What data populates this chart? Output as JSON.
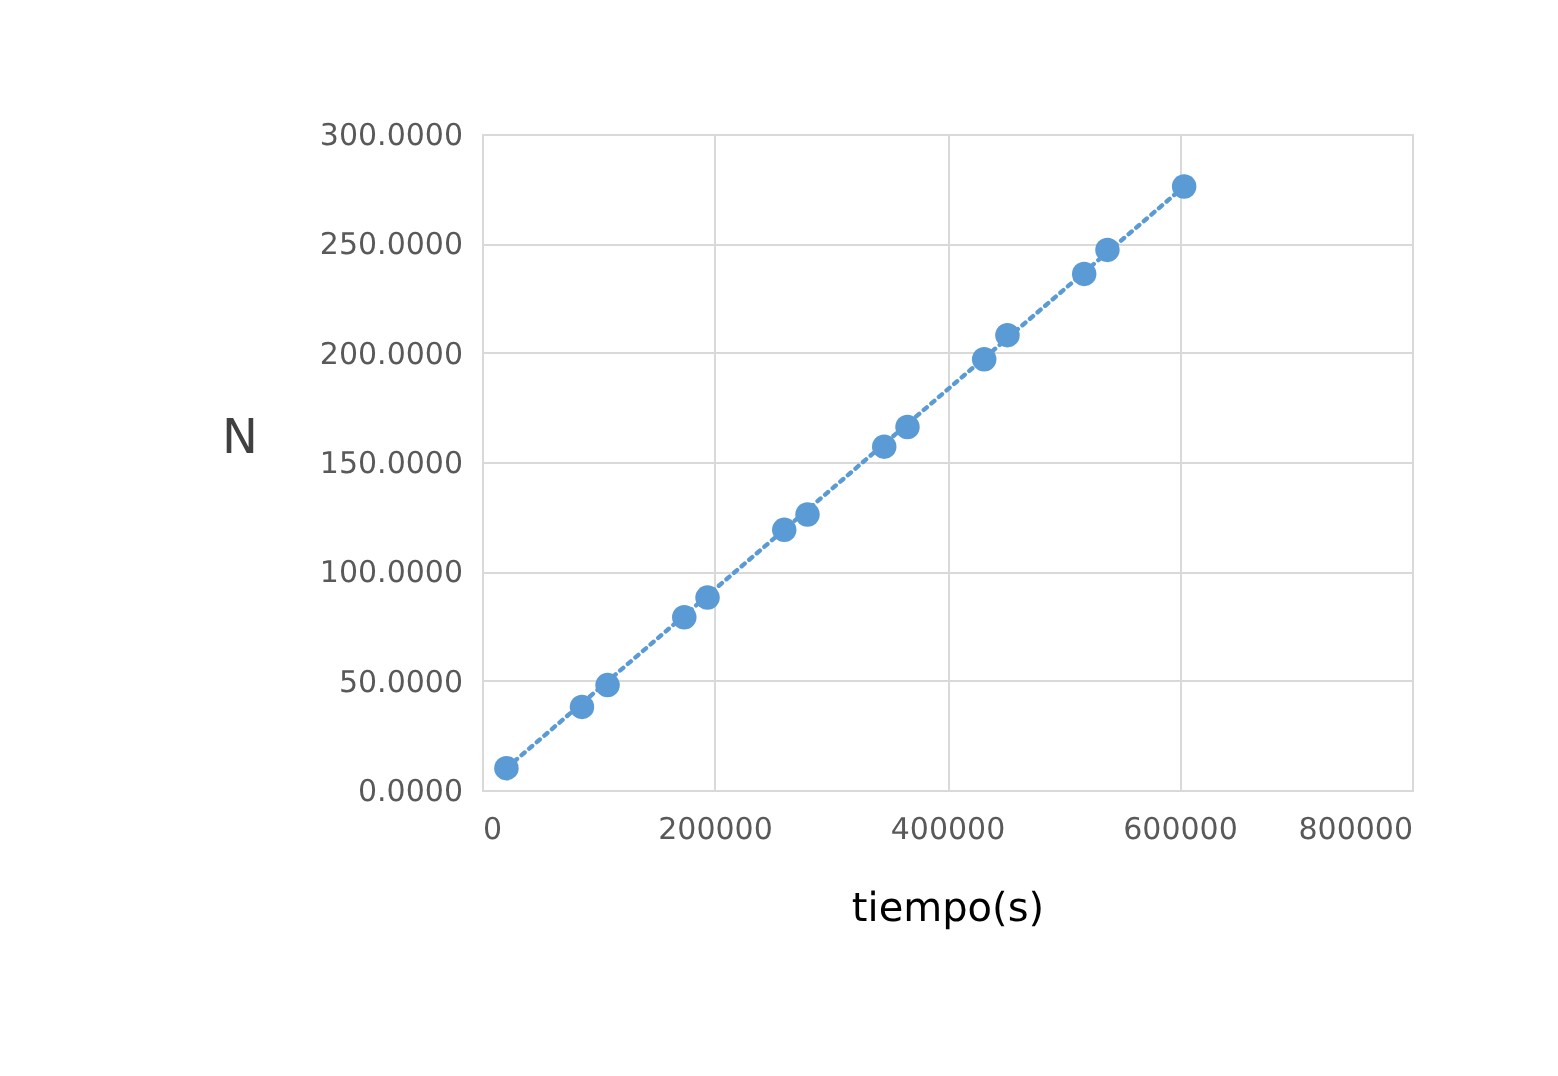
{
  "chart_data": {
    "type": "scatter",
    "xlabel": "tiempo(s)",
    "ylabel": "N",
    "xlim": [
      0,
      800000
    ],
    "xticks": [
      0,
      200000,
      400000,
      600000,
      800000
    ],
    "ylim": [
      0,
      300
    ],
    "yticks": [
      {
        "value": 0,
        "label": "0.0000"
      },
      {
        "value": 50,
        "label": "50.0000"
      },
      {
        "value": 100,
        "label": "100.0000"
      },
      {
        "value": 150,
        "label": "150.0000"
      },
      {
        "value": 200,
        "label": "200.0000"
      },
      {
        "value": 250,
        "label": "250.0000"
      },
      {
        "value": 300,
        "label": "300.0000"
      }
    ],
    "grid": true,
    "series": [
      {
        "color": "#5b9bd5",
        "marker": "circle",
        "x": [
          21000,
          86000,
          108000,
          174000,
          194000,
          260000,
          280000,
          346000,
          366000,
          432000,
          452000,
          518000,
          538000,
          604000
        ],
        "values": [
          10,
          38,
          48,
          79,
          88,
          119,
          126,
          157,
          166,
          197,
          208,
          236,
          247,
          276
        ]
      },
      {
        "type": "line",
        "color": "#5b9bd5",
        "line_style": "dotted",
        "marker": "none",
        "x": [
          21000,
          604000
        ],
        "values": [
          10,
          276
        ]
      }
    ]
  }
}
